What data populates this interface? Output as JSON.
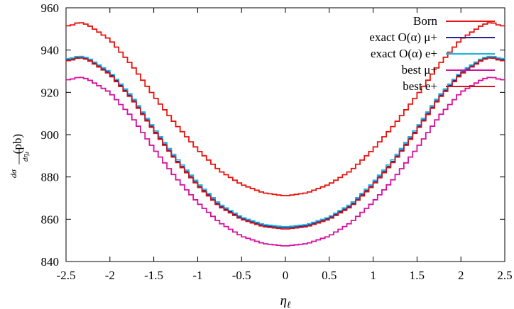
{
  "chart_data": {
    "type": "line",
    "title": "",
    "xlabel": "ηℓ",
    "ylabel": "dσ/dηℓ (pb)",
    "xlim": [
      -2.5,
      2.5
    ],
    "ylim": [
      840,
      960
    ],
    "xticks": [
      "-2.5",
      "-2",
      "-1.5",
      "-1",
      "-0.5",
      "0",
      "0.5",
      "1",
      "1.5",
      "2",
      "2.5"
    ],
    "yticks": [
      "840",
      "860",
      "880",
      "900",
      "920",
      "940",
      "960"
    ],
    "grid": false,
    "legend_position": "top-right",
    "bin_width": 0.05,
    "series": [
      {
        "name": "Born",
        "color": "#e8120c",
        "x": [
          -2.45,
          -2.35,
          -2.25,
          -2.0,
          -1.75,
          -1.5,
          -1.25,
          -1.0,
          -0.75,
          -0.5,
          -0.25,
          0.0,
          0.25,
          0.5,
          0.75,
          1.0,
          1.25,
          1.5,
          1.75,
          2.0,
          2.25,
          2.35,
          2.45
        ],
        "y": [
          951.5,
          953.2,
          952.0,
          945.0,
          933.0,
          918.5,
          905.0,
          893.0,
          883.0,
          876.5,
          872.5,
          871.0,
          872.5,
          876.5,
          883.0,
          893.0,
          905.0,
          918.5,
          933.0,
          945.0,
          952.0,
          953.2,
          951.5
        ]
      },
      {
        "name": "exact O(α) μ+",
        "color": "#252494",
        "x": [
          -2.45,
          -2.35,
          -2.25,
          -2.0,
          -1.75,
          -1.5,
          -1.25,
          -1.0,
          -0.75,
          -0.5,
          -0.25,
          0.0,
          0.25,
          0.5,
          0.75,
          1.0,
          1.25,
          1.5,
          1.75,
          2.0,
          2.25,
          2.35,
          2.45
        ],
        "y": [
          935.5,
          936.8,
          935.8,
          929.0,
          917.5,
          902.5,
          888.5,
          876.5,
          866.5,
          860.5,
          857.0,
          856.0,
          857.0,
          860.5,
          866.5,
          876.5,
          888.5,
          902.5,
          917.5,
          929.0,
          935.8,
          936.8,
          935.5
        ]
      },
      {
        "name": "exact O(α) e+",
        "color": "#18b3da",
        "x": [
          -2.45,
          -2.35,
          -2.25,
          -2.0,
          -1.75,
          -1.5,
          -1.25,
          -1.0,
          -0.75,
          -0.5,
          -0.25,
          0.0,
          0.25,
          0.5,
          0.75,
          1.0,
          1.25,
          1.5,
          1.75,
          2.0,
          2.25,
          2.35,
          2.45
        ],
        "y": [
          936.0,
          937.2,
          936.3,
          929.6,
          918.2,
          903.2,
          889.3,
          877.2,
          867.2,
          861.0,
          857.5,
          856.4,
          857.5,
          861.0,
          867.2,
          877.2,
          889.3,
          903.2,
          918.2,
          929.6,
          936.3,
          937.2,
          936.0
        ]
      },
      {
        "name": "best μ+",
        "color": "#d6109e",
        "x": [
          -2.45,
          -2.35,
          -2.25,
          -2.0,
          -1.75,
          -1.5,
          -1.25,
          -1.0,
          -0.75,
          -0.5,
          -0.25,
          0.0,
          0.25,
          0.5,
          0.75,
          1.0,
          1.25,
          1.5,
          1.75,
          2.0,
          2.25,
          2.35,
          2.45
        ],
        "y": [
          926.0,
          927.3,
          926.3,
          920.0,
          908.5,
          893.5,
          879.8,
          868.0,
          858.5,
          852.0,
          848.5,
          847.3,
          848.5,
          852.0,
          858.5,
          868.0,
          879.8,
          893.5,
          908.5,
          920.0,
          926.3,
          927.3,
          926.0
        ]
      },
      {
        "name": "best e+",
        "color": "#d4141c",
        "x": [
          -2.45,
          -2.35,
          -2.25,
          -2.0,
          -1.75,
          -1.5,
          -1.25,
          -1.0,
          -0.75,
          -0.5,
          -0.25,
          0.0,
          0.25,
          0.5,
          0.75,
          1.0,
          1.25,
          1.5,
          1.75,
          2.0,
          2.25,
          2.35,
          2.45
        ],
        "y": [
          935.0,
          936.5,
          935.5,
          928.5,
          917.0,
          902.0,
          888.0,
          876.0,
          866.0,
          860.0,
          856.5,
          855.3,
          856.5,
          860.0,
          866.0,
          876.0,
          888.0,
          902.0,
          917.0,
          928.5,
          935.5,
          936.5,
          935.0
        ]
      }
    ]
  }
}
